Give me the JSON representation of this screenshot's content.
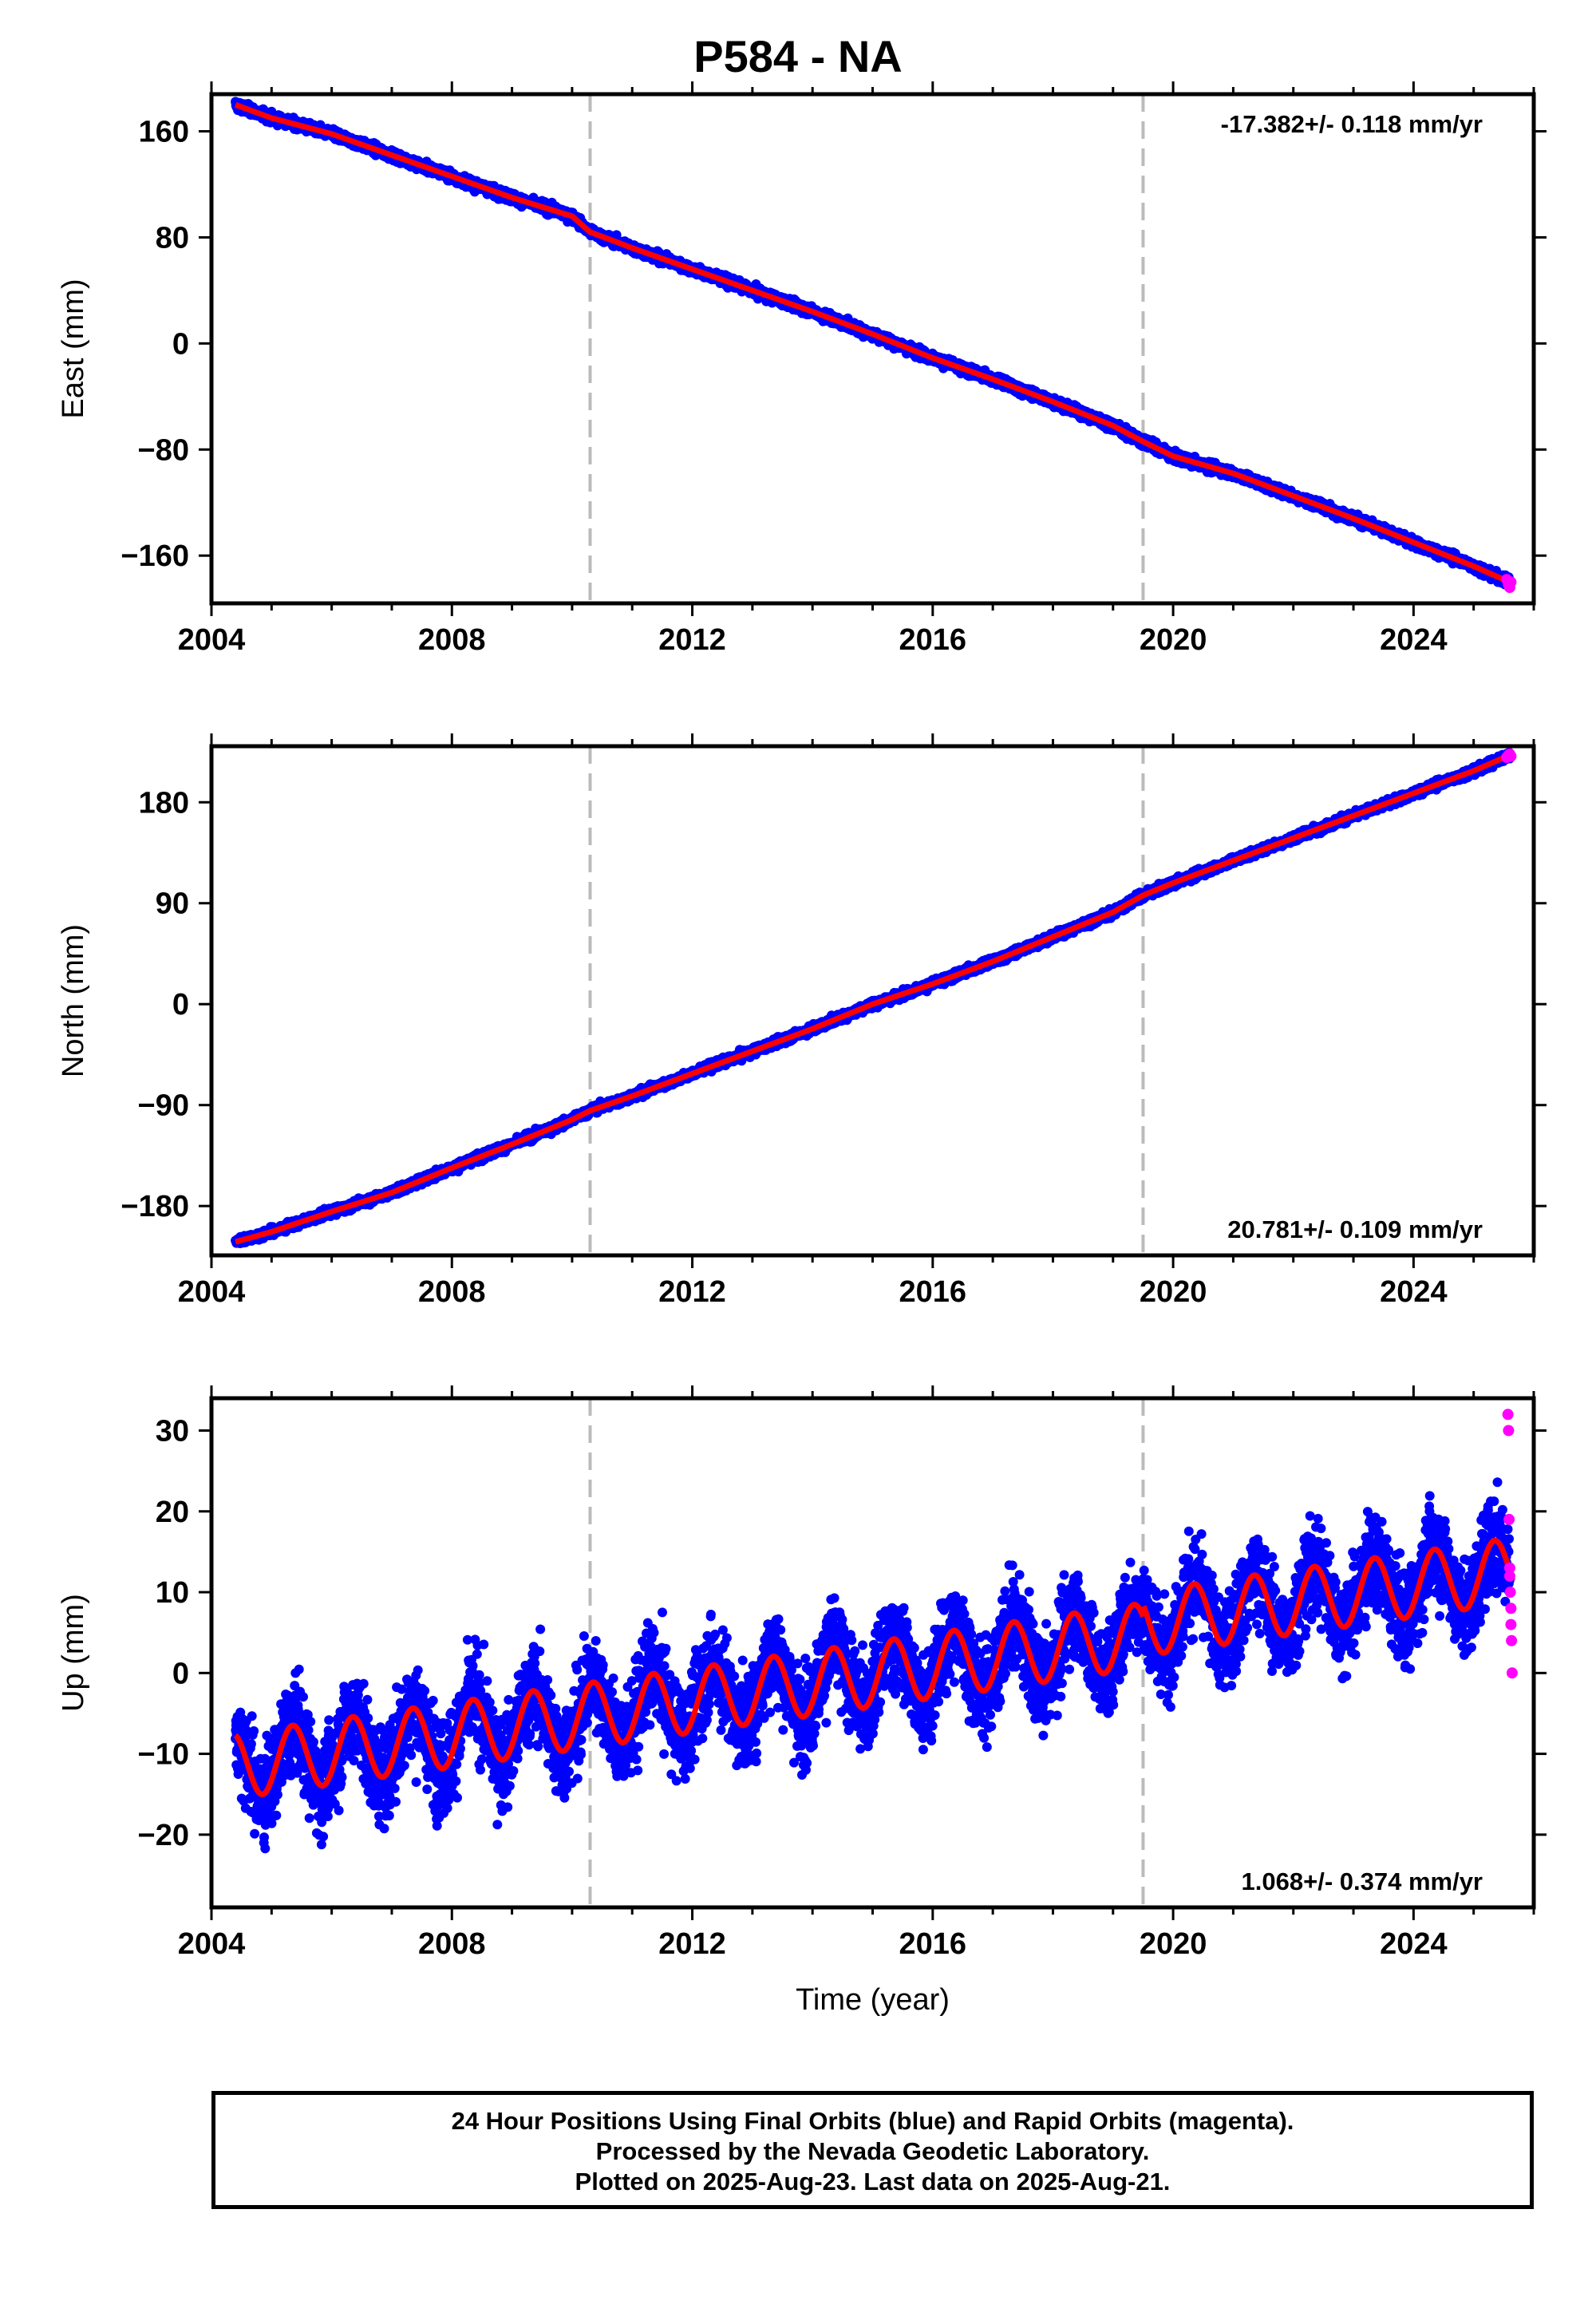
{
  "title": "P584 - NA",
  "colors": {
    "final": "#0000ff",
    "rapid": "#ff00ff",
    "model": "#ff0000",
    "break": "#bbbbbb"
  },
  "caption": {
    "line1": "24 Hour Positions Using Final Orbits (blue) and Rapid Orbits (magenta).",
    "line2": "Processed by the Nevada Geodetic Laboratory.",
    "line3": "Plotted on 2025-Aug-23. Last data on 2025-Aug-21."
  },
  "chart_data": [
    {
      "type": "scatter",
      "ylabel": "East (mm)",
      "xlim": [
        2004.0,
        2026.0
      ],
      "ylim": [
        -196,
        188
      ],
      "xticks": [
        2004,
        2008,
        2012,
        2016,
        2020,
        2024
      ],
      "yticks": [
        160,
        80,
        0,
        -80,
        -160
      ],
      "ytick_labels": [
        "160",
        "80",
        "0",
        "−80",
        "−160"
      ],
      "rate_label": "-17.382+/- 0.118 mm/yr",
      "rate_position": "top-right",
      "breaks": [
        2010.3,
        2019.5
      ],
      "series": [
        {
          "x": [
            2004.4,
            2005,
            2006,
            2007,
            2008,
            2009,
            2010,
            2010.3,
            2011,
            2012,
            2013,
            2014,
            2015,
            2016,
            2017,
            2018,
            2019,
            2019.5,
            2020,
            2021,
            2022,
            2023,
            2024,
            2025,
            2025.6
          ],
          "y": [
            180,
            170,
            158,
            142,
            126,
            110,
            96,
            84,
            72,
            56,
            40,
            24,
            7,
            -11,
            -27,
            -44,
            -62,
            -74,
            -85,
            -98,
            -115,
            -132,
            -150,
            -168,
            -180
          ]
        }
      ],
      "noise": 2.5,
      "rapid": {
        "x": [
          2025.55,
          2025.58,
          2025.6,
          2025.62
        ],
        "y": [
          -178,
          -182,
          -184,
          -180
        ]
      }
    },
    {
      "type": "scatter",
      "ylabel": "North (mm)",
      "xlim": [
        2004.0,
        2026.0
      ],
      "ylim": [
        -224,
        230
      ],
      "xticks": [
        2004,
        2008,
        2012,
        2016,
        2020,
        2024
      ],
      "yticks": [
        180,
        90,
        0,
        -90,
        -180
      ],
      "ytick_labels": [
        "180",
        "90",
        "0",
        "−90",
        "−180"
      ],
      "rate_label": "20.781+/- 0.109 mm/yr",
      "rate_position": "bottom-right",
      "breaks": [
        2010.3,
        2019.5
      ],
      "series": [
        {
          "x": [
            2004.4,
            2005,
            2006,
            2007,
            2008,
            2009,
            2010,
            2010.3,
            2011,
            2012,
            2013,
            2014,
            2015,
            2016,
            2017,
            2018,
            2019,
            2019.5,
            2020,
            2021,
            2022,
            2023,
            2024,
            2025,
            2025.6
          ],
          "y": [
            -212,
            -203,
            -185,
            -168,
            -146,
            -125,
            -103,
            -95,
            -82,
            -62,
            -42,
            -22,
            0,
            18,
            38,
            60,
            82,
            97,
            108,
            128,
            148,
            168,
            188,
            208,
            222
          ]
        }
      ],
      "noise": 2.5,
      "rapid": {
        "x": [
          2025.55,
          2025.58,
          2025.6,
          2025.62
        ],
        "y": [
          220,
          222,
          223,
          221
        ]
      }
    },
    {
      "type": "scatter",
      "ylabel": "Up (mm)",
      "xlabel": "Time (year)",
      "xlim": [
        2004.0,
        2026.0
      ],
      "ylim": [
        -29,
        34
      ],
      "xticks": [
        2004,
        2008,
        2012,
        2016,
        2020,
        2024
      ],
      "yticks": [
        30,
        20,
        10,
        0,
        -10,
        -20
      ],
      "ytick_labels": [
        "30",
        "20",
        "10",
        "0",
        "−10",
        "−20"
      ],
      "rate_label": "1.068+/- 0.374 mm/yr",
      "rate_position": "bottom-right",
      "breaks": [
        2010.3,
        2019.5
      ],
      "model": {
        "x_start": 2004.4,
        "x_end": 2025.65,
        "intercept_at_start": -11.5,
        "rate": 1.068,
        "seasonal_amplitude": 4.0,
        "seasonal_phase_year": 0.1,
        "offset_at_2019_5": 1.5
      },
      "noise": 4.0,
      "rapid": {
        "x": [
          2025.57,
          2025.58,
          2025.59,
          2025.6,
          2025.6,
          2025.61,
          2025.62,
          2025.62,
          2025.63,
          2025.64
        ],
        "y": [
          32,
          30,
          19,
          13,
          12,
          10,
          8,
          6,
          4,
          0
        ]
      }
    }
  ]
}
